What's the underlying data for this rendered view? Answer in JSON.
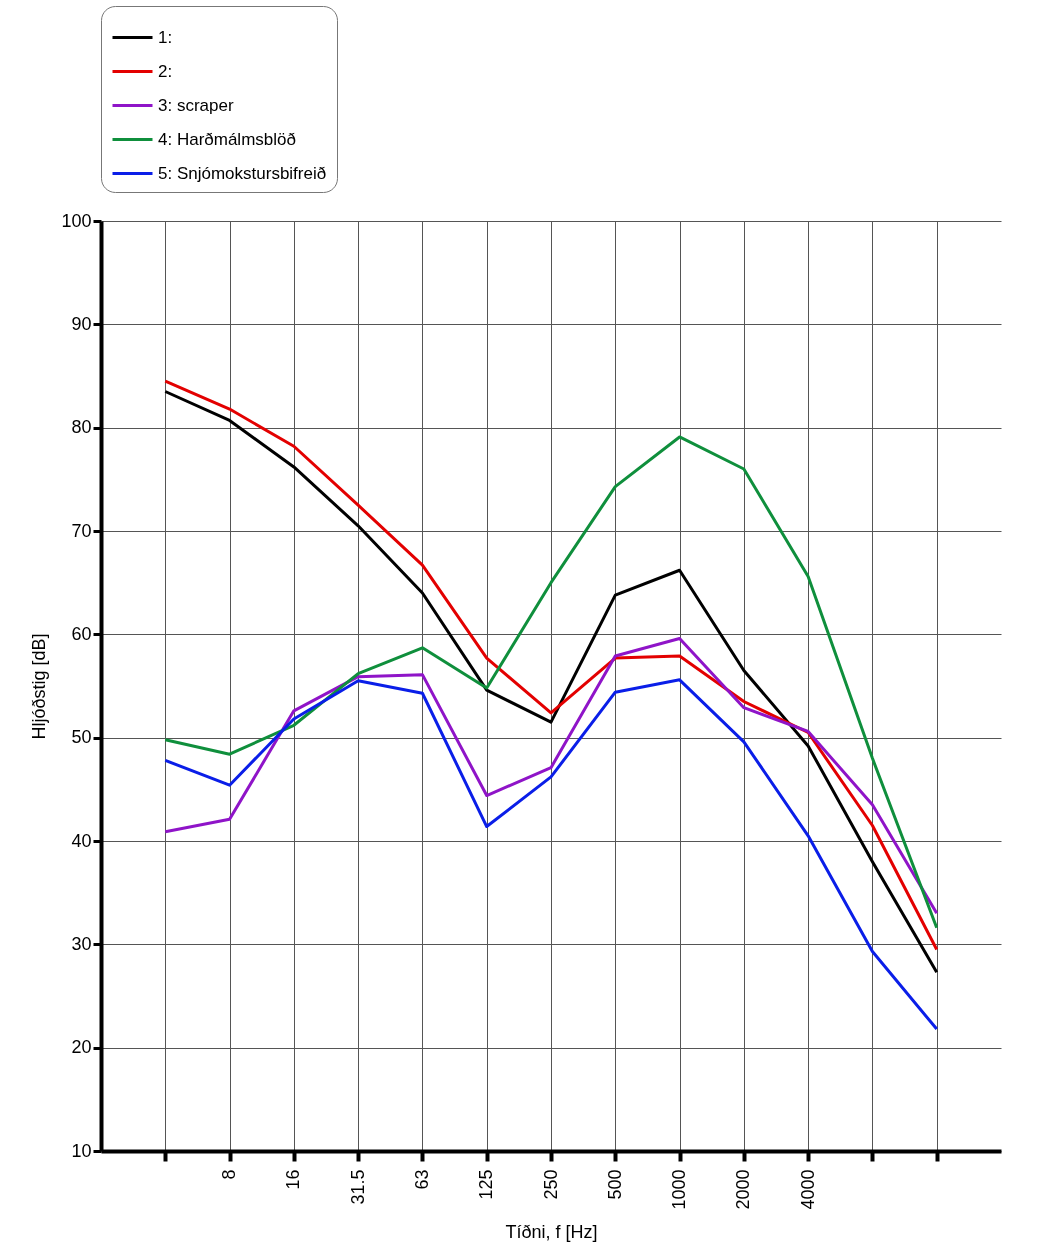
{
  "chart_data": {
    "type": "line",
    "xlabel": "Tíðni, f [Hz]",
    "ylabel": "Hljóðstig [dB]",
    "categories": [
      null,
      "8",
      "16",
      "31.5",
      "63",
      "125",
      "250",
      "500",
      "1000",
      "2000",
      "4000",
      null,
      null
    ],
    "ylim": [
      10,
      100
    ],
    "yticks": [
      10,
      20,
      30,
      40,
      50,
      60,
      70,
      80,
      90,
      100
    ],
    "grid": true,
    "legend": "top left",
    "marker": "none",
    "line_style": "solid",
    "series": [
      {
        "name": "1:",
        "color": "#000000",
        "values": [
          83.5,
          80.7,
          76.2,
          70.5,
          64,
          54.6,
          51.5,
          63.8,
          66.2,
          56.5,
          49.2,
          38,
          27.3
        ]
      },
      {
        "name": "2:",
        "color": "#e30000",
        "values": [
          84.5,
          81.8,
          78.2,
          72.5,
          66.7,
          57.7,
          52.4,
          57.7,
          57.9,
          53.5,
          50.5,
          41.5,
          29.5
        ]
      },
      {
        "name": "3: scraper",
        "color": "#8f14c8",
        "values": [
          40.9,
          42.1,
          52.6,
          55.9,
          56.1,
          44.4,
          47.1,
          57.9,
          59.6,
          52.9,
          50.6,
          43.5,
          33
        ]
      },
      {
        "name": "4: Harðmálmsblöð",
        "color": "#0f8f3c",
        "values": [
          49.8,
          48.4,
          51.2,
          56.2,
          58.7,
          54.8,
          65,
          74.3,
          79.1,
          76,
          65.6,
          48,
          31.6
        ]
      },
      {
        "name": "5: Snjómokstursbifreið",
        "color": "#0a1ee8",
        "values": [
          47.8,
          45.4,
          51.8,
          55.5,
          54.3,
          41.4,
          46.2,
          54.4,
          55.6,
          49.6,
          40.5,
          29.3,
          21.8
        ]
      }
    ]
  }
}
